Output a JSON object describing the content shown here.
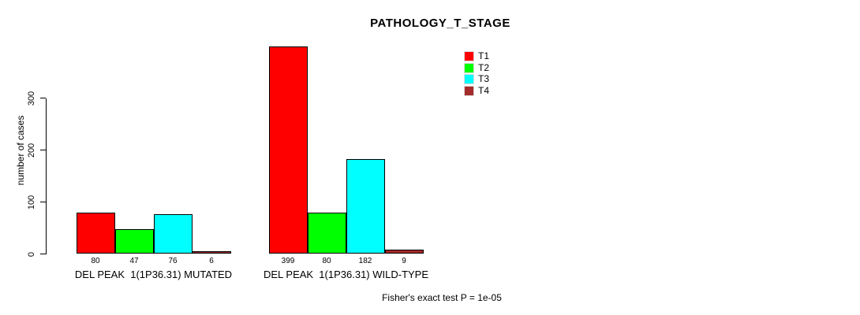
{
  "chart_data": {
    "type": "bar",
    "title": "PATHOLOGY_T_STAGE",
    "ylabel": "number of cases",
    "xlabel": "",
    "yticks": [
      0,
      100,
      200,
      300
    ],
    "ylim": [
      0,
      400
    ],
    "grid": false,
    "legend_position": "top-right",
    "categories": [
      "DEL PEAK  1(1P36.31) MUTATED",
      "DEL PEAK  1(1P36.31) WILD-TYPE"
    ],
    "series": [
      {
        "name": "T1",
        "color": "#ff0000",
        "values": [
          80,
          399
        ]
      },
      {
        "name": "T2",
        "color": "#00ff00",
        "values": [
          47,
          80
        ]
      },
      {
        "name": "T3",
        "color": "#00ffff",
        "values": [
          76,
          182
        ]
      },
      {
        "name": "T4",
        "color": "#a52a2a",
        "values": [
          6,
          9
        ]
      }
    ],
    "annotation": "Fisher's exact test P = 1e-05"
  }
}
